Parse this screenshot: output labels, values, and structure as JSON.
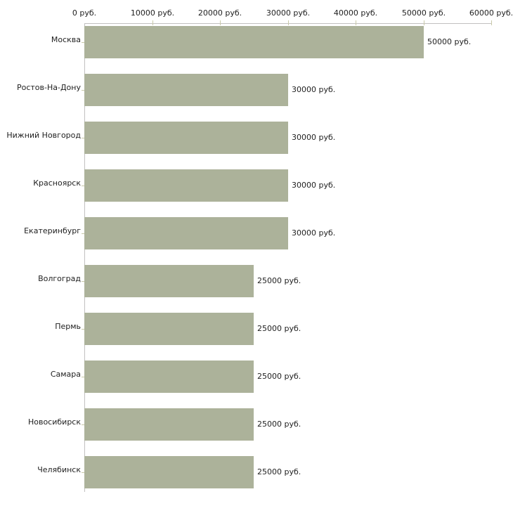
{
  "chart_data": {
    "type": "bar",
    "orientation": "horizontal",
    "title": "",
    "categories": [
      "Москва",
      "Ростов-На-Дону",
      "Нижний Новгород",
      "Красноярск",
      "Екатеринбург",
      "Волгоград",
      "Пермь",
      "Самара",
      "Новосибирск",
      "Челябинск"
    ],
    "values": [
      50000,
      30000,
      30000,
      30000,
      30000,
      25000,
      25000,
      25000,
      25000,
      25000
    ],
    "bar_labels": [
      "50000 руб.",
      "30000 руб.",
      "30000 руб.",
      "30000 руб.",
      "30000 руб.",
      "25000 руб.",
      "25000 руб.",
      "25000 руб.",
      "25000 руб.",
      "25000 руб."
    ],
    "unit": "руб.",
    "x_axis": {
      "position": "top",
      "range": [
        0,
        60000
      ],
      "ticks": [
        0,
        10000,
        20000,
        30000,
        40000,
        50000,
        60000
      ],
      "tick_labels": [
        "0 руб.",
        "10000 руб.",
        "20000 руб.",
        "30000 руб.",
        "40000 руб.",
        "50000 руб.",
        "60000 руб."
      ]
    },
    "grid": false,
    "legend": "none",
    "colors": {
      "bar": "#acb29a",
      "axis_line": "#c1c0c0",
      "tick_mark": "#c9c9a9",
      "text": "#1e1e1e",
      "background": "#ffffff"
    }
  }
}
